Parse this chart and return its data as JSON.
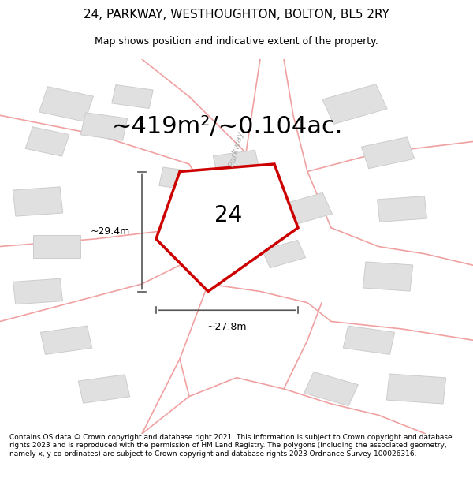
{
  "title": "24, PARKWAY, WESTHOUGHTON, BOLTON, BL5 2RY",
  "subtitle": "Map shows position and indicative extent of the property.",
  "area_text": "~419m²/~0.104ac.",
  "number_label": "24",
  "dim_width": "~27.8m",
  "dim_height": "~29.4m",
  "road_label": "Parkway",
  "footer": "Contains OS data © Crown copyright and database right 2021. This information is subject to Crown copyright and database rights 2023 and is reproduced with the permission of HM Land Registry. The polygons (including the associated geometry, namely x, y co-ordinates) are subject to Crown copyright and database rights 2023 Ordnance Survey 100026316.",
  "bg_color": "#f5f5f5",
  "map_bg": "#f0f0f0",
  "plot_color": "#cc0000",
  "plot_fill": "#f5f5f5",
  "road_outline_color": "#f0a0a0",
  "building_fill": "#e0e0e0",
  "building_outline": "#cccccc",
  "dim_color": "#555555",
  "title_fontsize": 11,
  "subtitle_fontsize": 9,
  "area_fontsize": 22,
  "number_fontsize": 20,
  "dim_fontsize": 9,
  "road_label_fontsize": 8,
  "footer_fontsize": 6.5
}
